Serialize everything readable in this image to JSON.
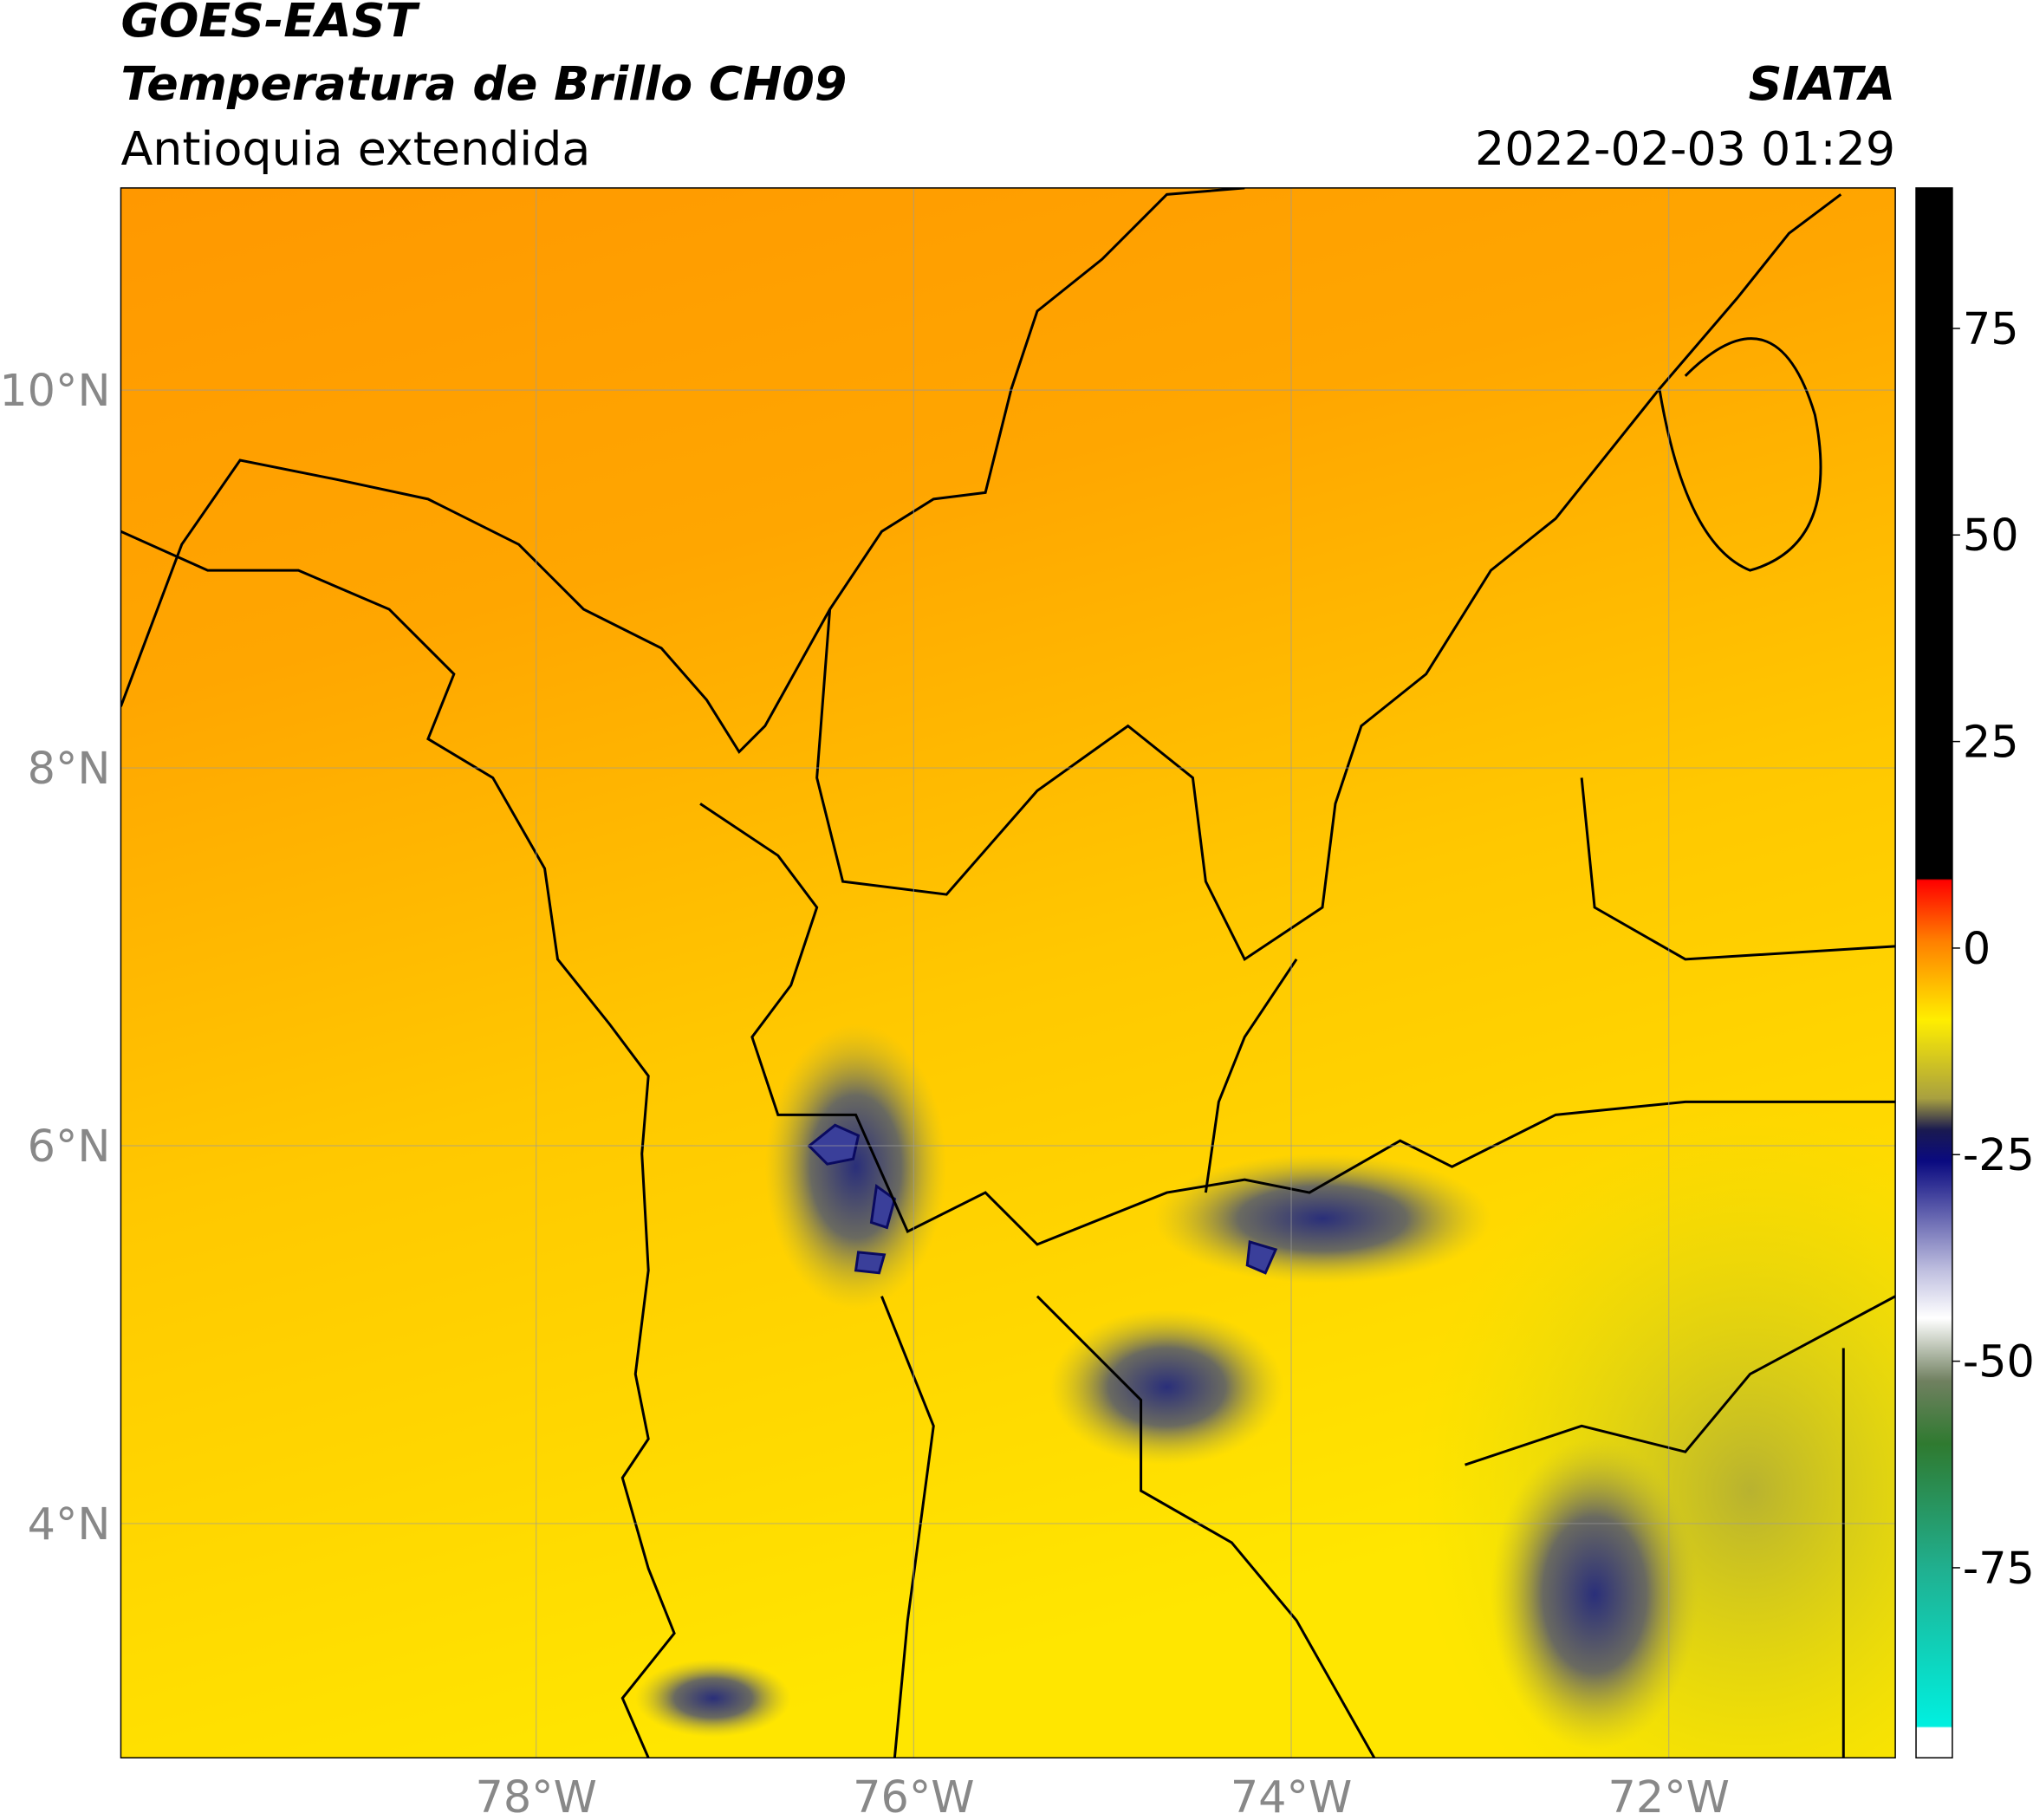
{
  "header": {
    "satellite": "GOES-EAST",
    "product": "Temperatura de Brillo CH09",
    "region": "Antioquia extendida",
    "agency": "SIATA",
    "datetime": "2022-02-03 01:29"
  },
  "map": {
    "xlim": [
      -80.2,
      -70.8
    ],
    "ylim": [
      2.76,
      11.07
    ],
    "xticks": [
      {
        "value": -78,
        "label": "78°W"
      },
      {
        "value": -76,
        "label": "76°W"
      },
      {
        "value": -74,
        "label": "74°W"
      },
      {
        "value": -72,
        "label": "72°W"
      }
    ],
    "yticks": [
      {
        "value": 10,
        "label": "10°N"
      },
      {
        "value": 8,
        "label": "8°N"
      },
      {
        "value": 6,
        "label": "6°N"
      },
      {
        "value": 4,
        "label": "4°N"
      }
    ],
    "grid": true
  },
  "colorbar": {
    "lim": [
      -98,
      92
    ],
    "ticks": [
      75,
      50,
      25,
      0,
      -25,
      -50,
      -75
    ]
  }
}
